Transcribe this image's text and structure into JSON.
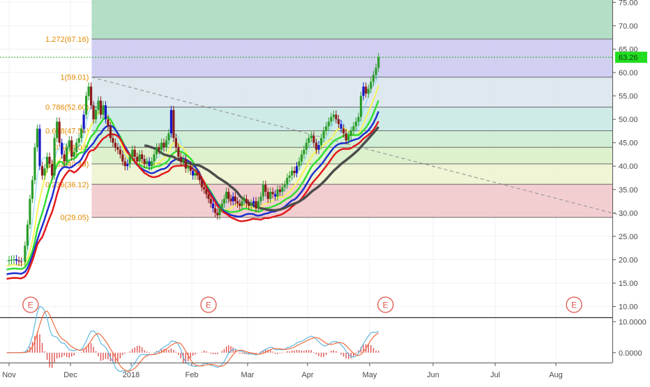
{
  "colors": {
    "background": "#ffffff",
    "grid": "#eef0f3",
    "axis_text": "#4a4a4a",
    "axis_line": "#555555",
    "candle_up": "#2a9d2a",
    "candle_down": "#8b1a1a",
    "candle_blue": "#1515c8",
    "sma_gray": "#4d4d4d",
    "ema_red": "#e31a1c",
    "ema_blue": "#1f2fd0",
    "ema_green": "#33dd33",
    "ema_yellow": "#f5f55a",
    "ema_cyan": "#7fd3f5",
    "fib_line": "#6a6a6a",
    "fib_label": "#e08a00",
    "last_price_bg": "#22dd22",
    "last_price_line": "#22aa22",
    "earnings": "#e0554a",
    "macd_line": "#5db8e0",
    "signal_line": "#f06a3c",
    "histogram": "#e05050",
    "trendline": "#9a9a9a"
  },
  "chart_data": [
    {
      "type": "candlestick",
      "panel": "price",
      "x_labels": [
        "Nov",
        "Dec",
        "2018",
        "Feb",
        "Mar",
        "Apr",
        "May",
        "Jun",
        "Jul",
        "Aug"
      ],
      "y_ticks": [
        "75.00",
        "70.00",
        "65.00",
        "60.00",
        "55.00",
        "50.00",
        "45.00",
        "40.00",
        "35.00",
        "30.00",
        "25.00",
        "20.00",
        "15.00",
        "10.00"
      ],
      "ylim": [
        7.7,
        75.5
      ],
      "last_price": "63.26",
      "earnings_markers": [
        {
          "label": "E",
          "x": 4.35
        },
        {
          "label": "E",
          "x": 7.3
        },
        {
          "label": "E",
          "x": 10.25
        },
        {
          "label": "E",
          "x": 13.3
        }
      ],
      "fibonacci": {
        "levels": [
          {
            "label": "0(29.05)",
            "value": 29.05,
            "fill": "#f1c6c8"
          },
          {
            "label": "0.236(36.12)",
            "value": 36.12,
            "fill": "#ecf3ce"
          },
          {
            "label": "0.382(40.49)",
            "value": 40.49,
            "fill": "#d8efc4"
          },
          {
            "label": "0.5(44.03)",
            "value": 44.03,
            "fill": "#c9eccf"
          },
          {
            "label": "0.618(47.56)",
            "value": 47.56,
            "fill": "#c5e8e4"
          },
          {
            "label": "0.786(52.60)",
            "value": 52.6,
            "fill": "#d8e4ec"
          },
          {
            "label": "1(59.01)",
            "value": 59.01,
            "fill": "#c9c7f0"
          },
          {
            "label": "1.272(67.16)",
            "value": 67.16,
            "fill": "#a8d8bc"
          }
        ],
        "x_start": 5.35
      },
      "trendline": [
        {
          "x": 5.35,
          "y": 59
        },
        {
          "x": 14.1,
          "y": 29.4
        }
      ],
      "candles_close": [
        [
          3.96,
          19.7
        ],
        [
          4,
          19.9
        ],
        [
          4.04,
          20
        ],
        [
          4.08,
          20.1
        ],
        [
          4.12,
          19.8
        ],
        [
          4.16,
          19.6
        ],
        [
          4.2,
          19.5
        ],
        [
          4.26,
          23.0
        ],
        [
          4.3,
          27.5
        ],
        [
          4.34,
          33
        ],
        [
          4.38,
          37
        ],
        [
          4.42,
          44
        ],
        [
          4.46,
          48
        ],
        [
          4.5,
          40
        ],
        [
          4.54,
          38
        ],
        [
          4.58,
          39.5
        ],
        [
          4.62,
          42
        ],
        [
          4.66,
          40.5
        ],
        [
          4.7,
          38
        ],
        [
          4.74,
          46
        ],
        [
          4.78,
          49.5
        ],
        [
          4.82,
          45
        ],
        [
          4.86,
          42.5
        ],
        [
          4.9,
          41
        ],
        [
          4.94,
          44
        ],
        [
          4.98,
          45.5
        ],
        [
          5.02,
          42
        ],
        [
          5.06,
          43
        ],
        [
          5.1,
          45
        ],
        [
          5.14,
          46
        ],
        [
          5.18,
          48
        ],
        [
          5.22,
          51
        ],
        [
          5.26,
          55
        ],
        [
          5.3,
          57
        ],
        [
          5.34,
          53
        ],
        [
          5.38,
          50
        ],
        [
          5.42,
          52
        ],
        [
          5.46,
          54
        ],
        [
          5.5,
          51
        ],
        [
          5.54,
          53
        ],
        [
          5.58,
          50
        ],
        [
          5.62,
          48.5
        ],
        [
          5.66,
          46
        ],
        [
          5.7,
          45
        ],
        [
          5.74,
          44
        ],
        [
          5.78,
          43.5
        ],
        [
          5.82,
          42.5
        ],
        [
          5.86,
          41
        ],
        [
          5.9,
          40
        ],
        [
          5.94,
          40.5
        ],
        [
          5.98,
          42
        ],
        [
          6.02,
          43.5
        ],
        [
          6.06,
          42
        ],
        [
          6.1,
          41
        ],
        [
          6.14,
          42.5
        ],
        [
          6.18,
          41.5
        ],
        [
          6.22,
          40.5
        ],
        [
          6.26,
          41
        ],
        [
          6.3,
          40
        ],
        [
          6.34,
          41
        ],
        [
          6.38,
          42.5
        ],
        [
          6.42,
          44
        ],
        [
          6.46,
          43.5
        ],
        [
          6.5,
          45
        ],
        [
          6.54,
          44
        ],
        [
          6.58,
          45.5
        ],
        [
          6.62,
          47
        ],
        [
          6.66,
          52
        ],
        [
          6.7,
          46
        ],
        [
          6.74,
          44
        ],
        [
          6.78,
          42
        ],
        [
          6.82,
          41
        ],
        [
          6.86,
          41.5
        ],
        [
          6.9,
          39.5
        ],
        [
          6.94,
          40
        ],
        [
          6.98,
          39
        ],
        [
          7.02,
          38
        ],
        [
          7.06,
          38.5
        ],
        [
          7.1,
          38
        ],
        [
          7.14,
          37
        ],
        [
          7.18,
          35.5
        ],
        [
          7.22,
          35
        ],
        [
          7.26,
          34
        ],
        [
          7.3,
          33
        ],
        [
          7.34,
          32
        ],
        [
          7.38,
          31
        ],
        [
          7.42,
          30
        ],
        [
          7.46,
          29.5
        ],
        [
          7.5,
          31
        ],
        [
          7.54,
          32
        ],
        [
          7.58,
          33
        ],
        [
          7.62,
          34.5
        ],
        [
          7.66,
          33
        ],
        [
          7.7,
          32.5
        ],
        [
          7.74,
          33.5
        ],
        [
          7.78,
          32.5
        ],
        [
          7.82,
          32
        ],
        [
          7.86,
          31.5
        ],
        [
          7.9,
          32.5
        ],
        [
          7.94,
          33
        ],
        [
          7.98,
          32
        ],
        [
          8.02,
          31.5
        ],
        [
          8.06,
          32
        ],
        [
          8.1,
          32.5
        ],
        [
          8.14,
          31
        ],
        [
          8.18,
          32.5
        ],
        [
          8.22,
          33.5
        ],
        [
          8.26,
          36
        ],
        [
          8.3,
          34.5
        ],
        [
          8.34,
          33
        ],
        [
          8.38,
          34.5
        ],
        [
          8.42,
          34
        ],
        [
          8.46,
          33.5
        ],
        [
          8.5,
          35
        ],
        [
          8.54,
          34.5
        ],
        [
          8.58,
          35.5
        ],
        [
          8.62,
          36
        ],
        [
          8.66,
          37.5
        ],
        [
          8.7,
          38
        ],
        [
          8.74,
          39
        ],
        [
          8.78,
          38.5
        ],
        [
          8.82,
          40
        ],
        [
          8.86,
          41
        ],
        [
          8.9,
          42.5
        ],
        [
          8.94,
          43.5
        ],
        [
          8.98,
          45
        ],
        [
          9.02,
          46
        ],
        [
          9.06,
          46.5
        ],
        [
          9.1,
          45
        ],
        [
          9.14,
          43.5
        ],
        [
          9.18,
          44.5
        ],
        [
          9.22,
          46
        ],
        [
          9.26,
          47.5
        ],
        [
          9.3,
          48.5
        ],
        [
          9.34,
          49.5
        ],
        [
          9.38,
          50.5
        ],
        [
          9.42,
          51
        ],
        [
          9.46,
          50
        ],
        [
          9.5,
          49
        ],
        [
          9.54,
          48
        ],
        [
          9.58,
          47
        ],
        [
          9.62,
          45.5
        ],
        [
          9.66,
          46.5
        ],
        [
          9.7,
          47.5
        ],
        [
          9.74,
          48.5
        ],
        [
          9.78,
          49.5
        ],
        [
          9.82,
          50.5
        ],
        [
          9.86,
          55
        ],
        [
          9.9,
          57
        ],
        [
          9.94,
          55.5
        ],
        [
          9.98,
          56.5
        ],
        [
          10.02,
          58
        ],
        [
          10.06,
          59.5
        ],
        [
          10.1,
          61
        ],
        [
          10.14,
          63.26
        ]
      ]
    },
    {
      "type": "line",
      "panel": "macd",
      "y_ticks": [
        "10.0000",
        "0.0000"
      ],
      "ylim": [
        -3.2,
        11.2
      ]
    }
  ]
}
